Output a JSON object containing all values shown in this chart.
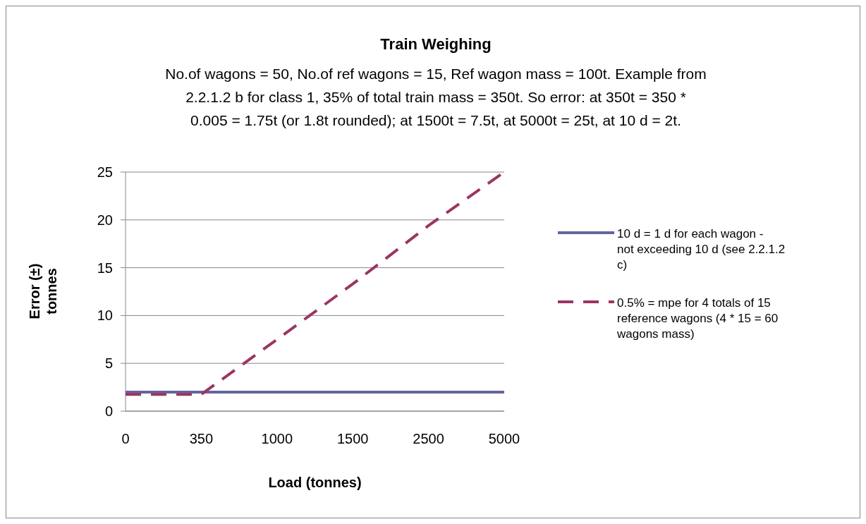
{
  "chart_data": {
    "type": "line",
    "title": "Train Weighing",
    "subtitle": "No.of wagons = 50, No.of ref wagons = 15, Ref wagon mass = 100t. Example from 2.2.1.2 b for class 1, 35% of total train mass = 350t. So error: at 350t = 350 * 0.005 = 1.75t (or 1.8t rounded); at 1500t = 7.5t, at 5000t = 25t, at 10 d = 2t.",
    "xlabel": "Load (tonnes)",
    "ylabel": "Error (±) tonnes",
    "categories": [
      "0",
      "350",
      "1000",
      "1500",
      "2500",
      "5000"
    ],
    "series": [
      {
        "name": "10 d  = 1 d for each wagon - not exceeding 10 d (see 2.2.1.2 c)",
        "color": "#6464a0",
        "line_style": "solid",
        "values": [
          2,
          2,
          2,
          2,
          2,
          2
        ]
      },
      {
        "name": "0.5% = mpe for 4 totals of 15 reference wagons (4 * 15 = 60 wagons mass)",
        "color": "#9b3564",
        "line_style": "dashed",
        "values": [
          1.75,
          1.75,
          7.5,
          13.3,
          19.4,
          25
        ]
      }
    ],
    "ylim": [
      0,
      25
    ],
    "yticks": [
      0,
      5,
      10,
      15,
      20,
      25
    ],
    "grid": "y",
    "legend": "right"
  }
}
